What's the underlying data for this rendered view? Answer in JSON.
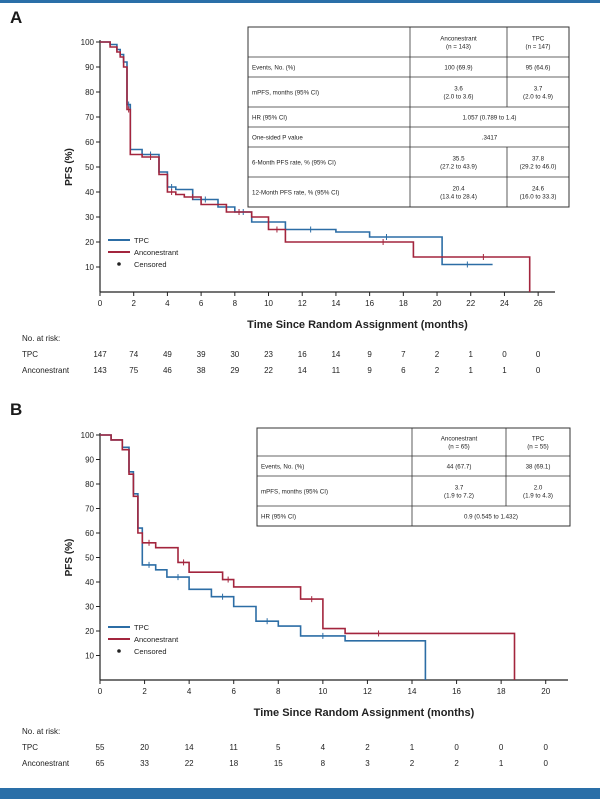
{
  "panels": [
    {
      "letter": "A",
      "ylabel": "PFS (%)",
      "xlabel": "Time Since Random Assignment (months)",
      "yticks": [
        10,
        20,
        30,
        40,
        50,
        60,
        70,
        80,
        90,
        100
      ],
      "xticks": [
        0,
        2,
        4,
        6,
        8,
        10,
        12,
        14,
        16,
        18,
        20,
        22,
        24,
        26
      ],
      "xlim": [
        0,
        27
      ],
      "ylim": [
        0,
        100
      ],
      "legend": {
        "tpc": "TPC",
        "anc": "Anconestrant",
        "censored": "Censored"
      },
      "table": {
        "columns": [
          "",
          "Anconestrant\n(n = 143)",
          "TPC\n(n = 147)"
        ],
        "rows": [
          [
            "Events, No. (%)",
            "100 (69.9)",
            "95 (64.6)"
          ],
          [
            "mPFS, months (95% CI)",
            "3.6\n(2.0 to 3.6)",
            "3.7\n(2.0 to 4.9)"
          ],
          [
            "HR (95% CI)",
            "1.057 (0.789 to 1.4)",
            ""
          ],
          [
            "One-sided P value",
            ".3417",
            ""
          ],
          [
            "6-Month PFS rate, % (95% CI)",
            "35.5\n(27.2 to 43.9)",
            "37.8\n(29.2 to 46.0)"
          ],
          [
            "12-Month PFS rate, % (95% CI)",
            "20.4\n(13.4 to 28.4)",
            "24.6\n(16.0 to 33.3)"
          ]
        ]
      },
      "risk": {
        "title": "No. at risk:",
        "rows": [
          {
            "label": "TPC",
            "values": [
              "147",
              "74",
              "49",
              "39",
              "30",
              "23",
              "16",
              "14",
              "9",
              "7",
              "2",
              "1",
              "0",
              "0"
            ]
          },
          {
            "label": "Anconestrant",
            "values": [
              "143",
              "75",
              "46",
              "38",
              "29",
              "22",
              "14",
              "11",
              "9",
              "6",
              "2",
              "1",
              "1",
              "0"
            ]
          }
        ]
      }
    },
    {
      "letter": "B",
      "ylabel": "PFS (%)",
      "xlabel": "Time Since Random Assignment (months)",
      "yticks": [
        10,
        20,
        30,
        40,
        50,
        60,
        70,
        80,
        90,
        100
      ],
      "xticks": [
        0,
        2,
        4,
        6,
        8,
        10,
        12,
        14,
        16,
        18,
        20
      ],
      "xlim": [
        0,
        21
      ],
      "ylim": [
        0,
        100
      ],
      "legend": {
        "tpc": "TPC",
        "anc": "Anconestrant",
        "censored": "Censored"
      },
      "table": {
        "columns": [
          "",
          "Anconestrant\n(n = 65)",
          "TPC\n(n = 55)"
        ],
        "rows": [
          [
            "Events, No. (%)",
            "44 (67.7)",
            "38 (69.1)"
          ],
          [
            "mPFS, months (95% CI)",
            "3.7\n(1.9 to 7.2)",
            "2.0\n(1.9 to 4.3)"
          ],
          [
            "HR (95% CI)",
            "0.9 (0.545 to 1.432)",
            ""
          ]
        ]
      },
      "risk": {
        "title": "No. at risk:",
        "rows": [
          {
            "label": "TPC",
            "values": [
              "55",
              "20",
              "14",
              "11",
              "5",
              "4",
              "2",
              "1",
              "0",
              "0",
              "0"
            ]
          },
          {
            "label": "Anconestrant",
            "values": [
              "65",
              "33",
              "22",
              "18",
              "15",
              "8",
              "3",
              "2",
              "2",
              "1",
              "0"
            ]
          }
        ]
      }
    }
  ],
  "colors": {
    "tpc": "#2c6da5",
    "anc": "#a3253d",
    "axis": "#222222",
    "table": "#333333"
  },
  "chart_data": [
    {
      "type": "line",
      "title": "A",
      "xlabel": "Time Since Random Assignment (months)",
      "ylabel": "PFS (%)",
      "xlim": [
        0,
        27
      ],
      "ylim": [
        0,
        100
      ],
      "series": [
        {
          "name": "TPC",
          "x": [
            0,
            0.3,
            0.6,
            1.0,
            1.2,
            1.4,
            1.6,
            1.8,
            2.5,
            3.5,
            4.0,
            4.5,
            5.5,
            7.0,
            8.0,
            9.0,
            11.0,
            14.0,
            16.0,
            18.0,
            20.3,
            23.3
          ],
          "y": [
            100,
            100,
            99,
            97,
            95,
            92,
            75,
            57,
            55,
            48,
            42,
            41,
            37,
            34,
            32,
            28,
            25,
            24,
            22,
            22,
            11,
            11
          ]
        },
        {
          "name": "Anconestrant",
          "x": [
            0,
            0.3,
            0.6,
            1.0,
            1.2,
            1.4,
            1.6,
            1.8,
            2.5,
            3.5,
            4.0,
            4.5,
            5.0,
            6.0,
            7.5,
            9.0,
            10.0,
            11.0,
            15.0,
            18.6,
            20.0,
            25.5
          ],
          "y": [
            100,
            100,
            98,
            96,
            94,
            90,
            73,
            55,
            54,
            47,
            40,
            39,
            38,
            35,
            32,
            30,
            25,
            20,
            20,
            14,
            14,
            0
          ]
        }
      ]
    },
    {
      "type": "line",
      "title": "B",
      "xlabel": "Time Since Random Assignment (months)",
      "ylabel": "PFS (%)",
      "xlim": [
        0,
        21
      ],
      "ylim": [
        0,
        100
      ],
      "series": [
        {
          "name": "TPC",
          "x": [
            0,
            0.5,
            1.0,
            1.3,
            1.5,
            1.7,
            1.9,
            2.5,
            3.0,
            4.0,
            5.0,
            6.0,
            7.0,
            8.0,
            9.0,
            11.0,
            14.6
          ],
          "y": [
            100,
            98,
            95,
            85,
            76,
            62,
            47,
            45,
            42,
            37,
            34,
            30,
            24,
            22,
            18,
            16,
            0
          ]
        },
        {
          "name": "Anconestrant",
          "x": [
            0,
            0.5,
            1.0,
            1.3,
            1.5,
            1.7,
            1.9,
            2.5,
            3.5,
            4.0,
            5.5,
            6.0,
            9.0,
            10.0,
            11.0,
            14.0,
            18.6
          ],
          "y": [
            100,
            98,
            94,
            84,
            75,
            60,
            56,
            54,
            48,
            44,
            41,
            38,
            33,
            21,
            19,
            19,
            0
          ]
        }
      ]
    }
  ]
}
